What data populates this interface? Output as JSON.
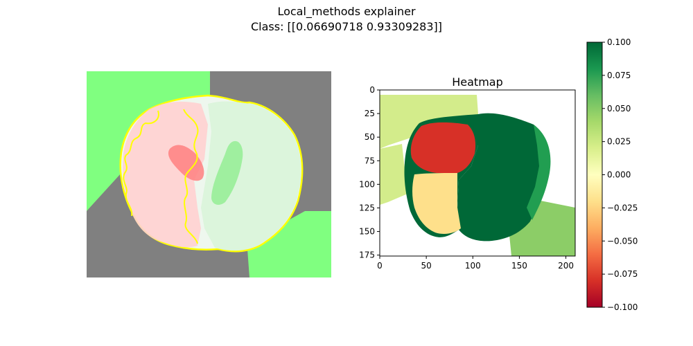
{
  "figure": {
    "title": "Local_methods explainer",
    "subtitle": "Class: [[0.06690718 0.93309283]]"
  },
  "colors": {
    "overlay_green": "#80ff80",
    "overlay_gray": "#808080",
    "boundary": "#ffff00",
    "overlay_red": "#ff9090",
    "brain_tissue": "#f2f2f2"
  },
  "chart_data": [
    {
      "type": "image",
      "description_free": true,
      "title": "",
      "axes": "off"
    },
    {
      "type": "heatmap",
      "title": "Heatmap",
      "x_ticks": [
        0,
        50,
        100,
        150,
        200
      ],
      "y_ticks": [
        0,
        25,
        50,
        75,
        100,
        125,
        150,
        175
      ],
      "xlim": [
        0,
        210
      ],
      "ylim": [
        176,
        0
      ],
      "colormap": "RdYlGn",
      "segments": [
        {
          "value": 0.03,
          "color": "#d3ec8b"
        },
        {
          "value": -0.08,
          "color": "#d73027"
        },
        {
          "value": -0.01,
          "color": "#fee08b"
        },
        {
          "value": 0.1,
          "color": "#006837"
        },
        {
          "value": 0.06,
          "color": "#219e51"
        },
        {
          "value": 0.04,
          "color": "#8ccd67"
        }
      ]
    },
    {
      "type": "colorbar",
      "colormap": "RdYlGn",
      "vmin": -0.1,
      "vmax": 0.1,
      "ticks": [
        "0.100",
        "0.075",
        "0.050",
        "0.025",
        "0.000",
        "−0.025",
        "−0.050",
        "−0.075",
        "−0.100"
      ],
      "tick_values": [
        0.1,
        0.075,
        0.05,
        0.025,
        0.0,
        -0.025,
        -0.05,
        -0.075,
        -0.1
      ]
    }
  ]
}
